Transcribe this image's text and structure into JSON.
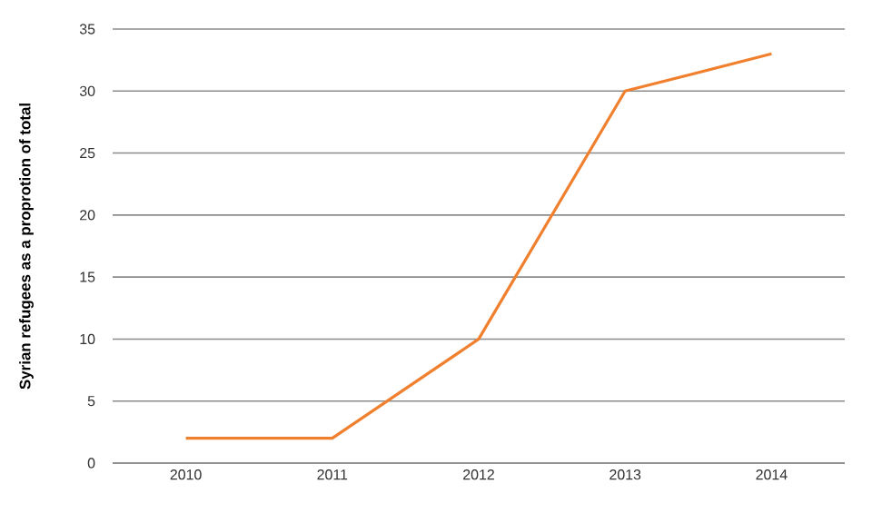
{
  "chart_data": {
    "type": "line",
    "ylabel": "Syrian refugees as a proprotion of total",
    "categories": [
      "2010",
      "2011",
      "2012",
      "2013",
      "2014"
    ],
    "series": [
      {
        "color": "#f07f2e",
        "values": [
          2,
          2,
          10,
          30,
          33
        ]
      }
    ],
    "ylim": [
      0,
      35
    ],
    "yticks": [
      0,
      5,
      10,
      15,
      20,
      25,
      30,
      35
    ],
    "grid": "y",
    "marker": "none",
    "line_style": "solid"
  }
}
